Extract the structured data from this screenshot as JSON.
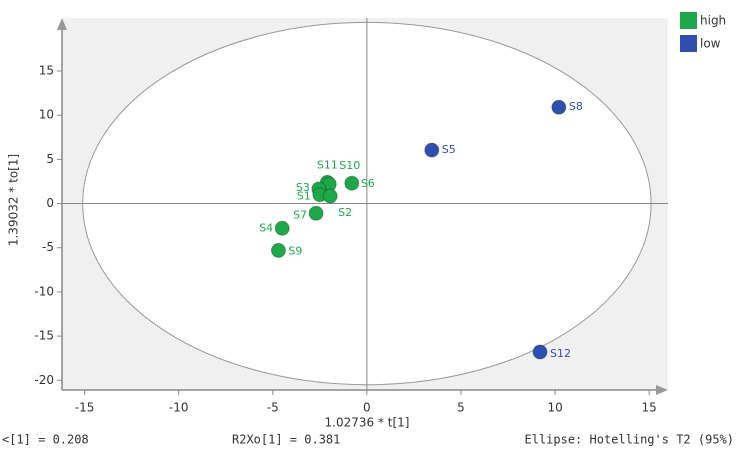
{
  "chart_data": {
    "type": "scatter",
    "xlabel": "1.02736 * t[1]",
    "ylabel": "1.39032 * to[1]",
    "xlim": [
      -16.2,
      16.0
    ],
    "ylim": [
      -21.1,
      21.0
    ],
    "xticks": [
      -15,
      -10,
      -5,
      0,
      5,
      10,
      15
    ],
    "yticks": [
      -20,
      -15,
      -10,
      -5,
      0,
      5,
      10,
      15
    ],
    "ellipse": {
      "rx": 15.1,
      "ry": 20.5
    },
    "legend": "top-right",
    "series": [
      {
        "name": "high",
        "color": "#1ea84a",
        "labels": [
          "S11",
          "S10",
          "S6",
          "S3",
          "S1",
          "S2",
          "S7",
          "S4",
          "S9"
        ],
        "x": [
          -2.1,
          -2.0,
          -0.8,
          -2.55,
          -2.5,
          -1.95,
          -2.7,
          -4.5,
          -4.7
        ],
        "y": [
          2.4,
          2.2,
          2.3,
          1.65,
          1.0,
          0.85,
          -1.1,
          -2.8,
          -5.3
        ]
      },
      {
        "name": "low",
        "color": "#2e4fb0",
        "labels": [
          "S8",
          "S5",
          "S12"
        ],
        "x": [
          10.2,
          3.45,
          9.2
        ],
        "y": [
          10.9,
          6.05,
          -16.8
        ]
      }
    ],
    "footer": [
      "<[1] = 0.208",
      "R2Xo[1] = 0.381",
      "Ellipse: Hotelling's T2 (95%)"
    ]
  }
}
